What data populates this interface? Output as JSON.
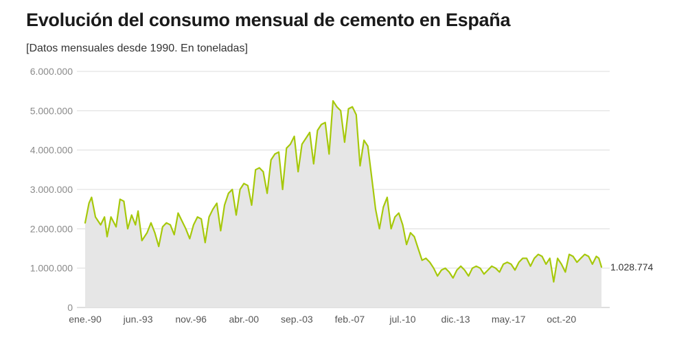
{
  "chart_data": {
    "type": "area",
    "title": "Evolución del consumo mensual de cemento en España",
    "subtitle": "[Datos mensuales desde 1990. En toneladas]",
    "yticks": [
      "0",
      "1.000.000",
      "2.000.000",
      "3.000.000",
      "4.000.000",
      "5.000.000",
      "6.000.000"
    ],
    "ylim": [
      0,
      6000000
    ],
    "xticks": [
      "ene.-90",
      "jun.-93",
      "nov.-96",
      "abr.-00",
      "sep.-03",
      "feb.-07",
      "jul.-10",
      "dic.-13",
      "may.-17",
      "oct.-20"
    ],
    "xlim": [
      "1990-01",
      "2023-05"
    ],
    "grid": true,
    "last_value_label": "1.028.774",
    "series": [
      {
        "color": "#a6c80a",
        "fill": "#e6e6e6",
        "points": [
          [
            "1990-01",
            2150000
          ],
          [
            "1990-04",
            2650000
          ],
          [
            "1990-06",
            2800000
          ],
          [
            "1990-09",
            2300000
          ],
          [
            "1991-01",
            2100000
          ],
          [
            "1991-04",
            2300000
          ],
          [
            "1991-06",
            1800000
          ],
          [
            "1991-09",
            2300000
          ],
          [
            "1992-01",
            2050000
          ],
          [
            "1992-04",
            2750000
          ],
          [
            "1992-07",
            2700000
          ],
          [
            "1992-10",
            2000000
          ],
          [
            "1993-01",
            2350000
          ],
          [
            "1993-04",
            2100000
          ],
          [
            "1993-06",
            2450000
          ],
          [
            "1993-09",
            1700000
          ],
          [
            "1994-01",
            1900000
          ],
          [
            "1994-04",
            2150000
          ],
          [
            "1994-07",
            1900000
          ],
          [
            "1994-10",
            1550000
          ],
          [
            "1995-01",
            2050000
          ],
          [
            "1995-04",
            2150000
          ],
          [
            "1995-07",
            2100000
          ],
          [
            "1995-10",
            1850000
          ],
          [
            "1996-01",
            2400000
          ],
          [
            "1996-04",
            2200000
          ],
          [
            "1996-07",
            2000000
          ],
          [
            "1996-10",
            1750000
          ],
          [
            "1997-01",
            2100000
          ],
          [
            "1997-04",
            2300000
          ],
          [
            "1997-07",
            2250000
          ],
          [
            "1997-10",
            1650000
          ],
          [
            "1998-01",
            2300000
          ],
          [
            "1998-04",
            2500000
          ],
          [
            "1998-07",
            2650000
          ],
          [
            "1998-10",
            1950000
          ],
          [
            "1999-01",
            2600000
          ],
          [
            "1999-04",
            2900000
          ],
          [
            "1999-07",
            3000000
          ],
          [
            "1999-10",
            2350000
          ],
          [
            "2000-01",
            3000000
          ],
          [
            "2000-04",
            3150000
          ],
          [
            "2000-07",
            3100000
          ],
          [
            "2000-10",
            2600000
          ],
          [
            "2001-01",
            3500000
          ],
          [
            "2001-04",
            3550000
          ],
          [
            "2001-07",
            3450000
          ],
          [
            "2001-10",
            2900000
          ],
          [
            "2002-01",
            3750000
          ],
          [
            "2002-04",
            3900000
          ],
          [
            "2002-07",
            3950000
          ],
          [
            "2002-10",
            3000000
          ],
          [
            "2003-01",
            4050000
          ],
          [
            "2003-04",
            4150000
          ],
          [
            "2003-07",
            4350000
          ],
          [
            "2003-10",
            3450000
          ],
          [
            "2004-01",
            4150000
          ],
          [
            "2004-04",
            4300000
          ],
          [
            "2004-07",
            4450000
          ],
          [
            "2004-10",
            3650000
          ],
          [
            "2005-01",
            4500000
          ],
          [
            "2005-04",
            4650000
          ],
          [
            "2005-07",
            4700000
          ],
          [
            "2005-10",
            3900000
          ],
          [
            "2006-01",
            5250000
          ],
          [
            "2006-04",
            5100000
          ],
          [
            "2006-07",
            5000000
          ],
          [
            "2006-10",
            4200000
          ],
          [
            "2007-01",
            5050000
          ],
          [
            "2007-04",
            5100000
          ],
          [
            "2007-07",
            4900000
          ],
          [
            "2007-10",
            3600000
          ],
          [
            "2008-01",
            4250000
          ],
          [
            "2008-04",
            4100000
          ],
          [
            "2008-07",
            3300000
          ],
          [
            "2008-10",
            2500000
          ],
          [
            "2009-01",
            2000000
          ],
          [
            "2009-04",
            2550000
          ],
          [
            "2009-07",
            2800000
          ],
          [
            "2009-10",
            2000000
          ],
          [
            "2010-01",
            2300000
          ],
          [
            "2010-04",
            2400000
          ],
          [
            "2010-07",
            2100000
          ],
          [
            "2010-10",
            1600000
          ],
          [
            "2011-01",
            1900000
          ],
          [
            "2011-04",
            1800000
          ],
          [
            "2011-07",
            1500000
          ],
          [
            "2011-10",
            1200000
          ],
          [
            "2012-01",
            1250000
          ],
          [
            "2012-04",
            1150000
          ],
          [
            "2012-07",
            1000000
          ],
          [
            "2012-10",
            800000
          ],
          [
            "2013-01",
            950000
          ],
          [
            "2013-04",
            1000000
          ],
          [
            "2013-07",
            900000
          ],
          [
            "2013-10",
            750000
          ],
          [
            "2014-01",
            950000
          ],
          [
            "2014-04",
            1050000
          ],
          [
            "2014-07",
            950000
          ],
          [
            "2014-10",
            800000
          ],
          [
            "2015-01",
            1000000
          ],
          [
            "2015-04",
            1050000
          ],
          [
            "2015-07",
            1000000
          ],
          [
            "2015-10",
            850000
          ],
          [
            "2016-01",
            950000
          ],
          [
            "2016-04",
            1050000
          ],
          [
            "2016-07",
            1000000
          ],
          [
            "2016-10",
            900000
          ],
          [
            "2017-01",
            1100000
          ],
          [
            "2017-04",
            1150000
          ],
          [
            "2017-07",
            1100000
          ],
          [
            "2017-10",
            950000
          ],
          [
            "2018-01",
            1150000
          ],
          [
            "2018-04",
            1250000
          ],
          [
            "2018-07",
            1250000
          ],
          [
            "2018-10",
            1050000
          ],
          [
            "2019-01",
            1250000
          ],
          [
            "2019-04",
            1350000
          ],
          [
            "2019-07",
            1300000
          ],
          [
            "2019-10",
            1100000
          ],
          [
            "2020-01",
            1250000
          ],
          [
            "2020-04",
            650000
          ],
          [
            "2020-07",
            1250000
          ],
          [
            "2020-10",
            1100000
          ],
          [
            "2021-01",
            900000
          ],
          [
            "2021-04",
            1350000
          ],
          [
            "2021-07",
            1300000
          ],
          [
            "2021-10",
            1150000
          ],
          [
            "2022-01",
            1250000
          ],
          [
            "2022-04",
            1350000
          ],
          [
            "2022-07",
            1300000
          ],
          [
            "2022-10",
            1100000
          ],
          [
            "2023-01",
            1300000
          ],
          [
            "2023-03",
            1250000
          ],
          [
            "2023-05",
            1028774
          ]
        ]
      }
    ]
  }
}
